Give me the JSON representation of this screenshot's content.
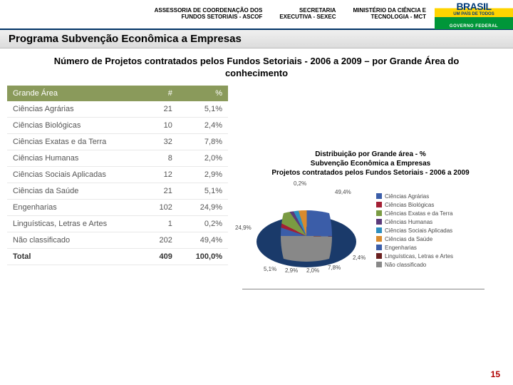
{
  "header": {
    "block1_line1": "ASSESSORIA DE COORDENAÇÃO DOS",
    "block1_line2": "FUNDOS SETORIAIS - ASCOF",
    "block2_line1": "SECRETARIA",
    "block2_line2": "EXECUTIVA - SEXEC",
    "block3_line1": "MINISTÉRIO DA CIÊNCIA E",
    "block3_line2": "TECNOLOGIA - MCT",
    "logo_top": "BRASIL",
    "logo_mid": "UM PAÍS DE TODOS",
    "logo_bot": "GOVERNO FEDERAL"
  },
  "title": "Programa Subvenção Econômica a Empresas",
  "subtitle": "Número de Projetos contratados pelos Fundos Setoriais - 2006 a 2009 – por Grande Área do conhecimento",
  "table": {
    "columns": [
      "Grande Área",
      "#",
      "%"
    ],
    "rows": [
      [
        "Ciências Agrárias",
        "21",
        "5,1%"
      ],
      [
        "Ciências Biológicas",
        "10",
        "2,4%"
      ],
      [
        "Ciências Exatas e da Terra",
        "32",
        "7,8%"
      ],
      [
        "Ciências Humanas",
        "8",
        "2,0%"
      ],
      [
        "Ciências Sociais Aplicadas",
        "12",
        "2,9%"
      ],
      [
        "Ciências da Saúde",
        "21",
        "5,1%"
      ],
      [
        "Engenharias",
        "102",
        "24,9%"
      ],
      [
        "Linguísticas, Letras e Artes",
        "1",
        "0,2%"
      ],
      [
        "Não classificado",
        "202",
        "49,4%"
      ],
      [
        "Total",
        "409",
        "100,0%"
      ]
    ]
  },
  "chart": {
    "type": "pie",
    "title_line1": "Distribuição por Grande área - %",
    "title_line2": "Subvenção Econômica a Empresas",
    "title_line3": "Projetos contratados pelos Fundos Setoriais - 2006 a 2009",
    "title_fontsize": 10,
    "background_color": "#ffffff",
    "slices": [
      {
        "label": "Ciências Agrárias",
        "value": 5.1,
        "color": "#3b5da8",
        "callout": "5,1%"
      },
      {
        "label": "Ciências Biológicas",
        "value": 2.4,
        "color": "#a31f34",
        "callout": "2,4%"
      },
      {
        "label": "Ciências Exatas e da Terra",
        "value": 7.8,
        "color": "#7a9b42",
        "callout": "7,8%"
      },
      {
        "label": "Ciências Humanas",
        "value": 2.0,
        "color": "#5b3a7a",
        "callout": "2,0%"
      },
      {
        "label": "Ciências Sociais Aplicadas",
        "value": 2.9,
        "color": "#2e8fbf",
        "callout": "2,9%"
      },
      {
        "label": "Ciências da Saúde",
        "value": 5.1,
        "color": "#d88a2e"
      },
      {
        "label": "Engenharias",
        "value": 24.9,
        "color": "#3b5da8",
        "callout": "24,9%"
      },
      {
        "label": "Linguísticas, Letras e Artes",
        "value": 0.2,
        "color": "#6a2020",
        "callout": "0,2%"
      },
      {
        "label": "Não classificado",
        "value": 49.4,
        "color": "#888888",
        "callout": "49,4%"
      }
    ],
    "legend_position": "right",
    "legend_fontsize": 8,
    "label_fontsize": 8
  },
  "page_number": "15"
}
